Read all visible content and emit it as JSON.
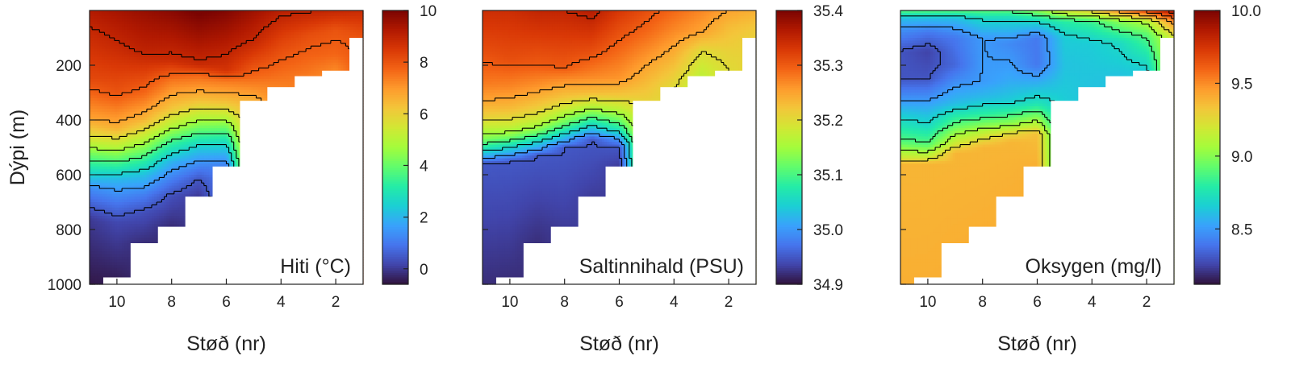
{
  "figure": {
    "ylabel": "Dýpi (m)",
    "xlabel": "Støð (nr)"
  },
  "colors": {
    "turbo": [
      "#30123b",
      "#4145ab",
      "#4675ed",
      "#39a2fc",
      "#1bcfd4",
      "#24eca6",
      "#61fc6c",
      "#a4fc3b",
      "#d1e834",
      "#f3c63a",
      "#fe9b2d",
      "#f36315",
      "#d93806",
      "#b11901",
      "#7a0402"
    ],
    "land": "#ffffff",
    "contour": "#000000"
  },
  "chart_data": [
    {
      "type": "heatmap",
      "name": "temperature",
      "label": "Hiti (°C)",
      "x_axis": {
        "label": "Støð (nr)",
        "ticks": [
          10,
          8,
          6,
          4,
          2
        ],
        "range": [
          11,
          1
        ],
        "reversed": true
      },
      "y_axis": {
        "label": "Dýpi (m)",
        "ticks": [
          200,
          400,
          600,
          800,
          1000
        ],
        "range": [
          0,
          1000
        ],
        "reversed": true
      },
      "colorbar": {
        "ticks": [
          "10",
          "8",
          "6",
          "4",
          "2",
          "0"
        ],
        "tick_values": [
          10,
          8,
          6,
          4,
          2,
          0
        ],
        "range": [
          -0.6,
          10
        ]
      },
      "stations": [
        11,
        10,
        9,
        8,
        7,
        6,
        5,
        4,
        3,
        2,
        1
      ],
      "bottom_depth": [
        1000,
        975,
        850,
        790,
        680,
        570,
        330,
        280,
        240,
        220,
        100
      ],
      "profiles": [
        [
          [
            0,
            9.2
          ],
          [
            90,
            8.8
          ],
          [
            250,
            8.2
          ],
          [
            400,
            6.8
          ],
          [
            470,
            5.5
          ],
          [
            530,
            4.0
          ],
          [
            600,
            2.5
          ],
          [
            650,
            1.3
          ],
          [
            700,
            0.7
          ],
          [
            760,
            0.0
          ],
          [
            1000,
            -0.5
          ]
        ],
        [
          [
            0,
            9.4
          ],
          [
            120,
            8.9
          ],
          [
            300,
            8.0
          ],
          [
            430,
            6.6
          ],
          [
            500,
            5.0
          ],
          [
            560,
            3.5
          ],
          [
            620,
            2.0
          ],
          [
            700,
            1.0
          ],
          [
            775,
            0.2
          ],
          [
            975,
            -0.4
          ]
        ],
        [
          [
            0,
            9.6
          ],
          [
            150,
            9.0
          ],
          [
            300,
            7.7
          ],
          [
            400,
            6.5
          ],
          [
            470,
            5.0
          ],
          [
            530,
            3.7
          ],
          [
            600,
            2.2
          ],
          [
            680,
            1.0
          ],
          [
            740,
            0.3
          ],
          [
            850,
            -0.2
          ]
        ],
        [
          [
            0,
            9.8
          ],
          [
            180,
            8.8
          ],
          [
            260,
            7.4
          ],
          [
            360,
            6.2
          ],
          [
            420,
            5.0
          ],
          [
            480,
            3.5
          ],
          [
            550,
            2.0
          ],
          [
            630,
            0.9
          ],
          [
            680,
            0.3
          ],
          [
            790,
            -0.2
          ]
        ],
        [
          [
            0,
            10.1
          ],
          [
            200,
            8.8
          ],
          [
            240,
            7.6
          ],
          [
            330,
            6.3
          ],
          [
            390,
            5.0
          ],
          [
            450,
            3.6
          ],
          [
            510,
            2.2
          ],
          [
            580,
            1.0
          ],
          [
            620,
            0.4
          ],
          [
            680,
            0.0
          ]
        ],
        [
          [
            0,
            9.9
          ],
          [
            220,
            8.6
          ],
          [
            260,
            7.4
          ],
          [
            330,
            6.4
          ],
          [
            380,
            5.3
          ],
          [
            430,
            4.0
          ],
          [
            480,
            2.8
          ],
          [
            540,
            1.6
          ],
          [
            570,
            1.1
          ]
        ],
        [
          [
            0,
            9.5
          ],
          [
            110,
            8.9
          ],
          [
            240,
            7.7
          ],
          [
            330,
            6.6
          ]
        ],
        [
          [
            0,
            9.1
          ],
          [
            110,
            8.3
          ],
          [
            230,
            7.6
          ],
          [
            280,
            7.3
          ]
        ],
        [
          [
            0,
            9.0
          ],
          [
            90,
            8.1
          ],
          [
            220,
            7.5
          ],
          [
            240,
            7.4
          ]
        ],
        [
          [
            0,
            8.9
          ],
          [
            70,
            8.0
          ],
          [
            160,
            7.7
          ],
          [
            220,
            7.2
          ]
        ],
        [
          [
            0,
            8.8
          ],
          [
            60,
            8.3
          ],
          [
            100,
            8.0
          ]
        ]
      ]
    },
    {
      "type": "heatmap",
      "name": "salinity",
      "label": "Saltinnihald (PSU)",
      "x_axis": {
        "label": "Støð (nr)",
        "ticks": [
          10,
          8,
          6,
          4,
          2
        ],
        "range": [
          11,
          1
        ],
        "reversed": true
      },
      "y_axis": {
        "ticks": [
          200,
          400,
          600,
          800,
          1000
        ],
        "range": [
          0,
          1000
        ],
        "reversed": true
      },
      "colorbar": {
        "ticks": [
          "35.4",
          "35.3",
          "35.2",
          "35.1",
          "35.0",
          "34.9"
        ],
        "tick_values": [
          35.4,
          35.3,
          35.2,
          35.1,
          35.0,
          34.9
        ],
        "range": [
          34.9,
          35.4
        ]
      },
      "stations": [
        11,
        10,
        9,
        8,
        7,
        6,
        5,
        4,
        3,
        2,
        1
      ],
      "bottom_depth": [
        1000,
        975,
        850,
        790,
        680,
        570,
        330,
        280,
        240,
        220,
        100
      ],
      "profiles": [
        [
          [
            0,
            35.34
          ],
          [
            150,
            35.31
          ],
          [
            260,
            35.28
          ],
          [
            330,
            35.25
          ],
          [
            390,
            35.21
          ],
          [
            430,
            35.17
          ],
          [
            470,
            35.13
          ],
          [
            510,
            35.06
          ],
          [
            540,
            35.0
          ],
          [
            560,
            34.95
          ],
          [
            1000,
            34.92
          ]
        ],
        [
          [
            0,
            35.34
          ],
          [
            180,
            35.31
          ],
          [
            280,
            35.27
          ],
          [
            360,
            35.23
          ],
          [
            420,
            35.18
          ],
          [
            460,
            35.13
          ],
          [
            500,
            35.05
          ],
          [
            530,
            35.0
          ],
          [
            550,
            34.95
          ],
          [
            975,
            34.92
          ]
        ],
        [
          [
            0,
            35.35
          ],
          [
            200,
            35.3
          ],
          [
            280,
            35.26
          ],
          [
            350,
            35.22
          ],
          [
            400,
            35.18
          ],
          [
            440,
            35.13
          ],
          [
            480,
            35.05
          ],
          [
            510,
            35.0
          ],
          [
            530,
            34.95
          ],
          [
            850,
            34.92
          ]
        ],
        [
          [
            0,
            35.35
          ],
          [
            210,
            35.3
          ],
          [
            260,
            35.26
          ],
          [
            320,
            35.22
          ],
          [
            360,
            35.18
          ],
          [
            410,
            35.12
          ],
          [
            450,
            35.05
          ],
          [
            480,
            35.0
          ],
          [
            500,
            34.95
          ],
          [
            790,
            34.93
          ]
        ],
        [
          [
            0,
            35.36
          ],
          [
            150,
            35.31
          ],
          [
            240,
            35.27
          ],
          [
            300,
            35.23
          ],
          [
            340,
            35.18
          ],
          [
            380,
            35.12
          ],
          [
            420,
            35.05
          ],
          [
            450,
            35.0
          ],
          [
            470,
            34.95
          ],
          [
            680,
            34.93
          ]
        ],
        [
          [
            0,
            35.33
          ],
          [
            110,
            35.3
          ],
          [
            250,
            35.26
          ],
          [
            310,
            35.22
          ],
          [
            360,
            35.17
          ],
          [
            400,
            35.12
          ],
          [
            440,
            35.06
          ],
          [
            470,
            35.0
          ],
          [
            500,
            34.95
          ],
          [
            570,
            34.93
          ]
        ],
        [
          [
            0,
            35.31
          ],
          [
            80,
            35.29
          ],
          [
            200,
            35.25
          ],
          [
            330,
            35.21
          ]
        ],
        [
          [
            0,
            35.29
          ],
          [
            70,
            35.27
          ],
          [
            160,
            35.24
          ],
          [
            280,
            35.2
          ]
        ],
        [
          [
            0,
            35.27
          ],
          [
            80,
            35.25
          ],
          [
            150,
            35.2
          ],
          [
            240,
            35.17
          ]
        ],
        [
          [
            0,
            35.25
          ],
          [
            60,
            35.23
          ],
          [
            150,
            35.21
          ],
          [
            220,
            35.2
          ]
        ],
        [
          [
            0,
            35.24
          ],
          [
            60,
            35.22
          ],
          [
            100,
            35.21
          ]
        ]
      ]
    },
    {
      "type": "heatmap",
      "name": "oxygen",
      "label": "Oksygen (mg/l)",
      "x_axis": {
        "label": "Støð (nr)",
        "ticks": [
          10,
          8,
          6,
          4,
          2
        ],
        "range": [
          11,
          1
        ],
        "reversed": true
      },
      "y_axis": {
        "ticks": [
          200,
          400,
          600,
          800,
          1000
        ],
        "range": [
          0,
          1000
        ],
        "reversed": true
      },
      "colorbar": {
        "ticks": [
          "10.0",
          "9.5",
          "9.0",
          "8.5"
        ],
        "tick_values": [
          10.0,
          9.5,
          9.0,
          8.5
        ],
        "range": [
          8.12,
          10.0
        ]
      },
      "stations": [
        11,
        10,
        9,
        8,
        7,
        6,
        5,
        4,
        3,
        2,
        1
      ],
      "bottom_depth": [
        1000,
        975,
        850,
        790,
        680,
        570,
        330,
        280,
        240,
        220,
        100
      ],
      "profiles": [
        [
          [
            0,
            8.9
          ],
          [
            30,
            8.6
          ],
          [
            80,
            8.45
          ],
          [
            150,
            8.3
          ],
          [
            250,
            8.3
          ],
          [
            330,
            8.5
          ],
          [
            400,
            8.7
          ],
          [
            480,
            8.9
          ],
          [
            540,
            9.2
          ],
          [
            560,
            9.38
          ],
          [
            1000,
            9.4
          ]
        ],
        [
          [
            0,
            8.9
          ],
          [
            30,
            8.6
          ],
          [
            80,
            8.4
          ],
          [
            150,
            8.25
          ],
          [
            250,
            8.3
          ],
          [
            330,
            8.5
          ],
          [
            420,
            8.7
          ],
          [
            490,
            8.9
          ],
          [
            540,
            9.2
          ],
          [
            560,
            9.38
          ],
          [
            975,
            9.4
          ]
        ],
        [
          [
            0,
            8.9
          ],
          [
            30,
            8.6
          ],
          [
            100,
            8.4
          ],
          [
            200,
            8.35
          ],
          [
            280,
            8.5
          ],
          [
            340,
            8.6
          ],
          [
            390,
            8.8
          ],
          [
            440,
            9.0
          ],
          [
            490,
            9.2
          ],
          [
            520,
            9.38
          ],
          [
            850,
            9.4
          ]
        ],
        [
          [
            0,
            8.9
          ],
          [
            30,
            8.7
          ],
          [
            100,
            8.5
          ],
          [
            260,
            8.5
          ],
          [
            320,
            8.6
          ],
          [
            380,
            8.8
          ],
          [
            420,
            9.0
          ],
          [
            460,
            9.2
          ],
          [
            500,
            9.38
          ],
          [
            790,
            9.4
          ]
        ],
        [
          [
            0,
            8.9
          ],
          [
            30,
            8.7
          ],
          [
            120,
            8.45
          ],
          [
            260,
            8.55
          ],
          [
            330,
            8.65
          ],
          [
            380,
            8.85
          ],
          [
            420,
            9.05
          ],
          [
            450,
            9.25
          ],
          [
            480,
            9.38
          ],
          [
            680,
            9.4
          ]
        ],
        [
          [
            0,
            9.0
          ],
          [
            40,
            8.7
          ],
          [
            100,
            8.4
          ],
          [
            200,
            8.4
          ],
          [
            280,
            8.6
          ],
          [
            340,
            8.75
          ],
          [
            380,
            8.95
          ],
          [
            420,
            9.15
          ],
          [
            450,
            9.35
          ],
          [
            570,
            9.4
          ]
        ],
        [
          [
            0,
            9.2
          ],
          [
            40,
            8.8
          ],
          [
            100,
            8.65
          ],
          [
            200,
            8.62
          ],
          [
            330,
            8.65
          ]
        ],
        [
          [
            0,
            9.3
          ],
          [
            40,
            8.85
          ],
          [
            120,
            8.65
          ],
          [
            280,
            8.62
          ]
        ],
        [
          [
            0,
            9.5
          ],
          [
            40,
            9.0
          ],
          [
            120,
            8.7
          ],
          [
            240,
            8.62
          ]
        ],
        [
          [
            0,
            9.7
          ],
          [
            40,
            9.1
          ],
          [
            90,
            8.9
          ],
          [
            220,
            8.65
          ]
        ],
        [
          [
            0,
            9.9
          ],
          [
            40,
            9.5
          ],
          [
            100,
            9.2
          ]
        ]
      ]
    }
  ]
}
